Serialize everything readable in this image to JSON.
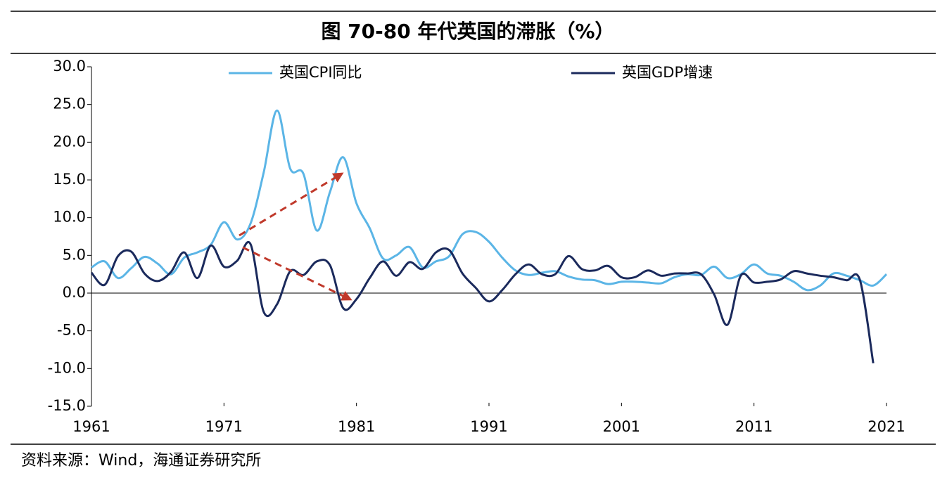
{
  "chart_data": {
    "type": "line",
    "title": "图 70-80 年代英国的滞胀（%）",
    "source": "资料来源：Wind，海通证券研究所",
    "x": [
      1961,
      1962,
      1963,
      1964,
      1965,
      1966,
      1967,
      1968,
      1969,
      1970,
      1971,
      1972,
      1973,
      1974,
      1975,
      1976,
      1977,
      1978,
      1979,
      1980,
      1981,
      1982,
      1983,
      1984,
      1985,
      1986,
      1987,
      1988,
      1989,
      1990,
      1991,
      1992,
      1993,
      1994,
      1995,
      1996,
      1997,
      1998,
      1999,
      2000,
      2001,
      2002,
      2003,
      2004,
      2005,
      2006,
      2007,
      2008,
      2009,
      2010,
      2011,
      2012,
      2013,
      2014,
      2015,
      2016,
      2017,
      2018,
      2019,
      2020,
      2021
    ],
    "series": [
      {
        "name": "英国CPI同比",
        "color": "#5bb5e6",
        "values": [
          3.4,
          4.2,
          2.0,
          3.3,
          4.8,
          3.9,
          2.5,
          4.7,
          5.4,
          6.4,
          9.4,
          7.1,
          9.2,
          16.0,
          24.2,
          16.5,
          15.8,
          8.3,
          13.4,
          18.0,
          11.9,
          8.6,
          4.6,
          5.0,
          6.1,
          3.4,
          4.2,
          4.9,
          7.8,
          8.1,
          6.8,
          4.7,
          3.0,
          2.4,
          2.7,
          2.9,
          2.2,
          1.8,
          1.7,
          1.2,
          1.5,
          1.5,
          1.4,
          1.3,
          2.1,
          2.5,
          2.4,
          3.5,
          2.0,
          2.5,
          3.8,
          2.6,
          2.3,
          1.5,
          0.4,
          1.0,
          2.6,
          2.3,
          1.7,
          1.0,
          2.5
        ]
      },
      {
        "name": "英国GDP增速",
        "color": "#1b2a5c",
        "values": [
          2.7,
          1.1,
          4.9,
          5.5,
          2.6,
          1.6,
          2.8,
          5.4,
          2.0,
          6.3,
          3.5,
          4.3,
          6.5,
          -2.5,
          -1.5,
          2.9,
          2.4,
          4.2,
          3.7,
          -2.0,
          -0.8,
          2.0,
          4.2,
          2.3,
          4.1,
          3.2,
          5.4,
          5.7,
          2.6,
          0.7,
          -1.1,
          0.4,
          2.5,
          3.8,
          2.5,
          2.5,
          4.9,
          3.2,
          3.0,
          3.6,
          2.1,
          2.1,
          3.0,
          2.3,
          2.6,
          2.6,
          2.5,
          -0.2,
          -4.2,
          2.3,
          1.4,
          1.5,
          1.8,
          2.9,
          2.6,
          2.3,
          2.1,
          1.7,
          1.7,
          -9.3,
          null
        ]
      }
    ],
    "xlim": [
      1961,
      2021
    ],
    "xticks": [
      1961,
      1971,
      1981,
      1991,
      2001,
      2011,
      2021
    ],
    "ylim": [
      -15,
      30
    ],
    "yticks": [
      {
        "value": 30,
        "label": "30.0"
      },
      {
        "value": 25,
        "label": "25.0"
      },
      {
        "value": 20,
        "label": "20.0"
      },
      {
        "value": 15,
        "label": "15.0"
      },
      {
        "value": 10,
        "label": "10.0"
      },
      {
        "value": 5,
        "label": "5.0"
      },
      {
        "value": 0,
        "label": "0.0"
      },
      {
        "value": -5,
        "label": "-5.0"
      },
      {
        "value": -10,
        "label": "-10.0"
      },
      {
        "value": -15,
        "label": "-15.0"
      }
    ]
  }
}
